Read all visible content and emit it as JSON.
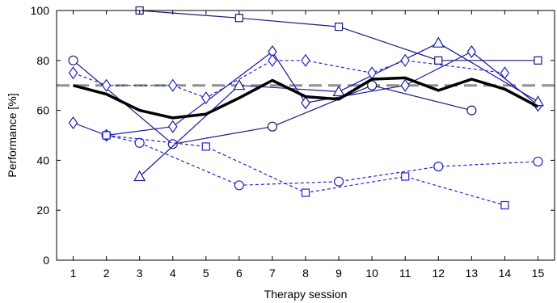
{
  "chart_data": {
    "type": "line",
    "xlabel": "Therapy session",
    "ylabel": "Performance [%]",
    "xlim": [
      0.5,
      15.5
    ],
    "ylim": [
      0,
      100
    ],
    "xticks": [
      1,
      2,
      3,
      4,
      5,
      6,
      7,
      8,
      9,
      10,
      11,
      12,
      13,
      14,
      15
    ],
    "yticks": [
      0,
      20,
      40,
      60,
      80,
      100
    ],
    "grid": false,
    "reference_line": {
      "y": 70,
      "color": "#909090",
      "style": "dashed"
    },
    "series": [
      {
        "marker": "circle",
        "style": "solid",
        "color": "#1a1a7e",
        "points": [
          [
            1,
            80
          ],
          [
            4,
            46.5
          ],
          [
            7,
            53.5
          ],
          [
            10,
            70
          ],
          [
            13,
            60
          ]
        ]
      },
      {
        "marker": "diamond",
        "style": "solid",
        "color": "#1a1a9e",
        "points": [
          [
            1,
            55
          ],
          [
            2,
            50
          ],
          [
            4,
            53.5
          ],
          [
            7,
            83.5
          ],
          [
            8,
            63
          ],
          [
            11,
            70
          ],
          [
            13,
            83.5
          ],
          [
            15,
            62
          ]
        ]
      },
      {
        "marker": "square",
        "style": "solid",
        "color": "#1a1a7e",
        "points": [
          [
            3,
            100
          ],
          [
            6,
            97
          ],
          [
            9,
            93.5
          ],
          [
            12,
            80
          ],
          [
            15,
            80
          ]
        ]
      },
      {
        "marker": "triangle",
        "style": "solid",
        "color": "#1a1a9e",
        "points": [
          [
            3,
            33.5
          ],
          [
            6,
            70
          ],
          [
            9,
            67.5
          ],
          [
            12,
            87
          ],
          [
            15,
            63.5
          ]
        ]
      },
      {
        "marker": "circle",
        "style": "dashed",
        "color": "#2222cc",
        "points": [
          [
            2,
            50
          ],
          [
            3,
            47
          ],
          [
            6,
            30
          ],
          [
            9,
            31.5
          ],
          [
            12,
            37.5
          ],
          [
            15,
            39.5
          ]
        ]
      },
      {
        "marker": "square",
        "style": "dashed",
        "color": "#2222cc",
        "points": [
          [
            2,
            50
          ],
          [
            5,
            45.5
          ],
          [
            8,
            27
          ],
          [
            11,
            33.5
          ],
          [
            14,
            22
          ]
        ]
      },
      {
        "marker": "diamond",
        "style": "dashed",
        "color": "#2222cc",
        "points": [
          [
            1,
            75
          ],
          [
            2,
            70
          ],
          [
            4,
            70
          ],
          [
            5,
            65
          ],
          [
            7,
            80
          ],
          [
            8,
            80
          ],
          [
            10,
            75
          ],
          [
            11,
            80
          ],
          [
            14,
            75
          ]
        ]
      },
      {
        "marker": "none",
        "style": "solid-thick",
        "color": "#000000",
        "points": [
          [
            1,
            70
          ],
          [
            2,
            66.5
          ],
          [
            3,
            60
          ],
          [
            4,
            57
          ],
          [
            5,
            58.5
          ],
          [
            6,
            65
          ],
          [
            7,
            72
          ],
          [
            8,
            65.5
          ],
          [
            9,
            64.5
          ],
          [
            10,
            72.5
          ],
          [
            11,
            73
          ],
          [
            12,
            68
          ],
          [
            13,
            72.5
          ],
          [
            14,
            68.5
          ],
          [
            15,
            61.5
          ]
        ]
      }
    ]
  }
}
